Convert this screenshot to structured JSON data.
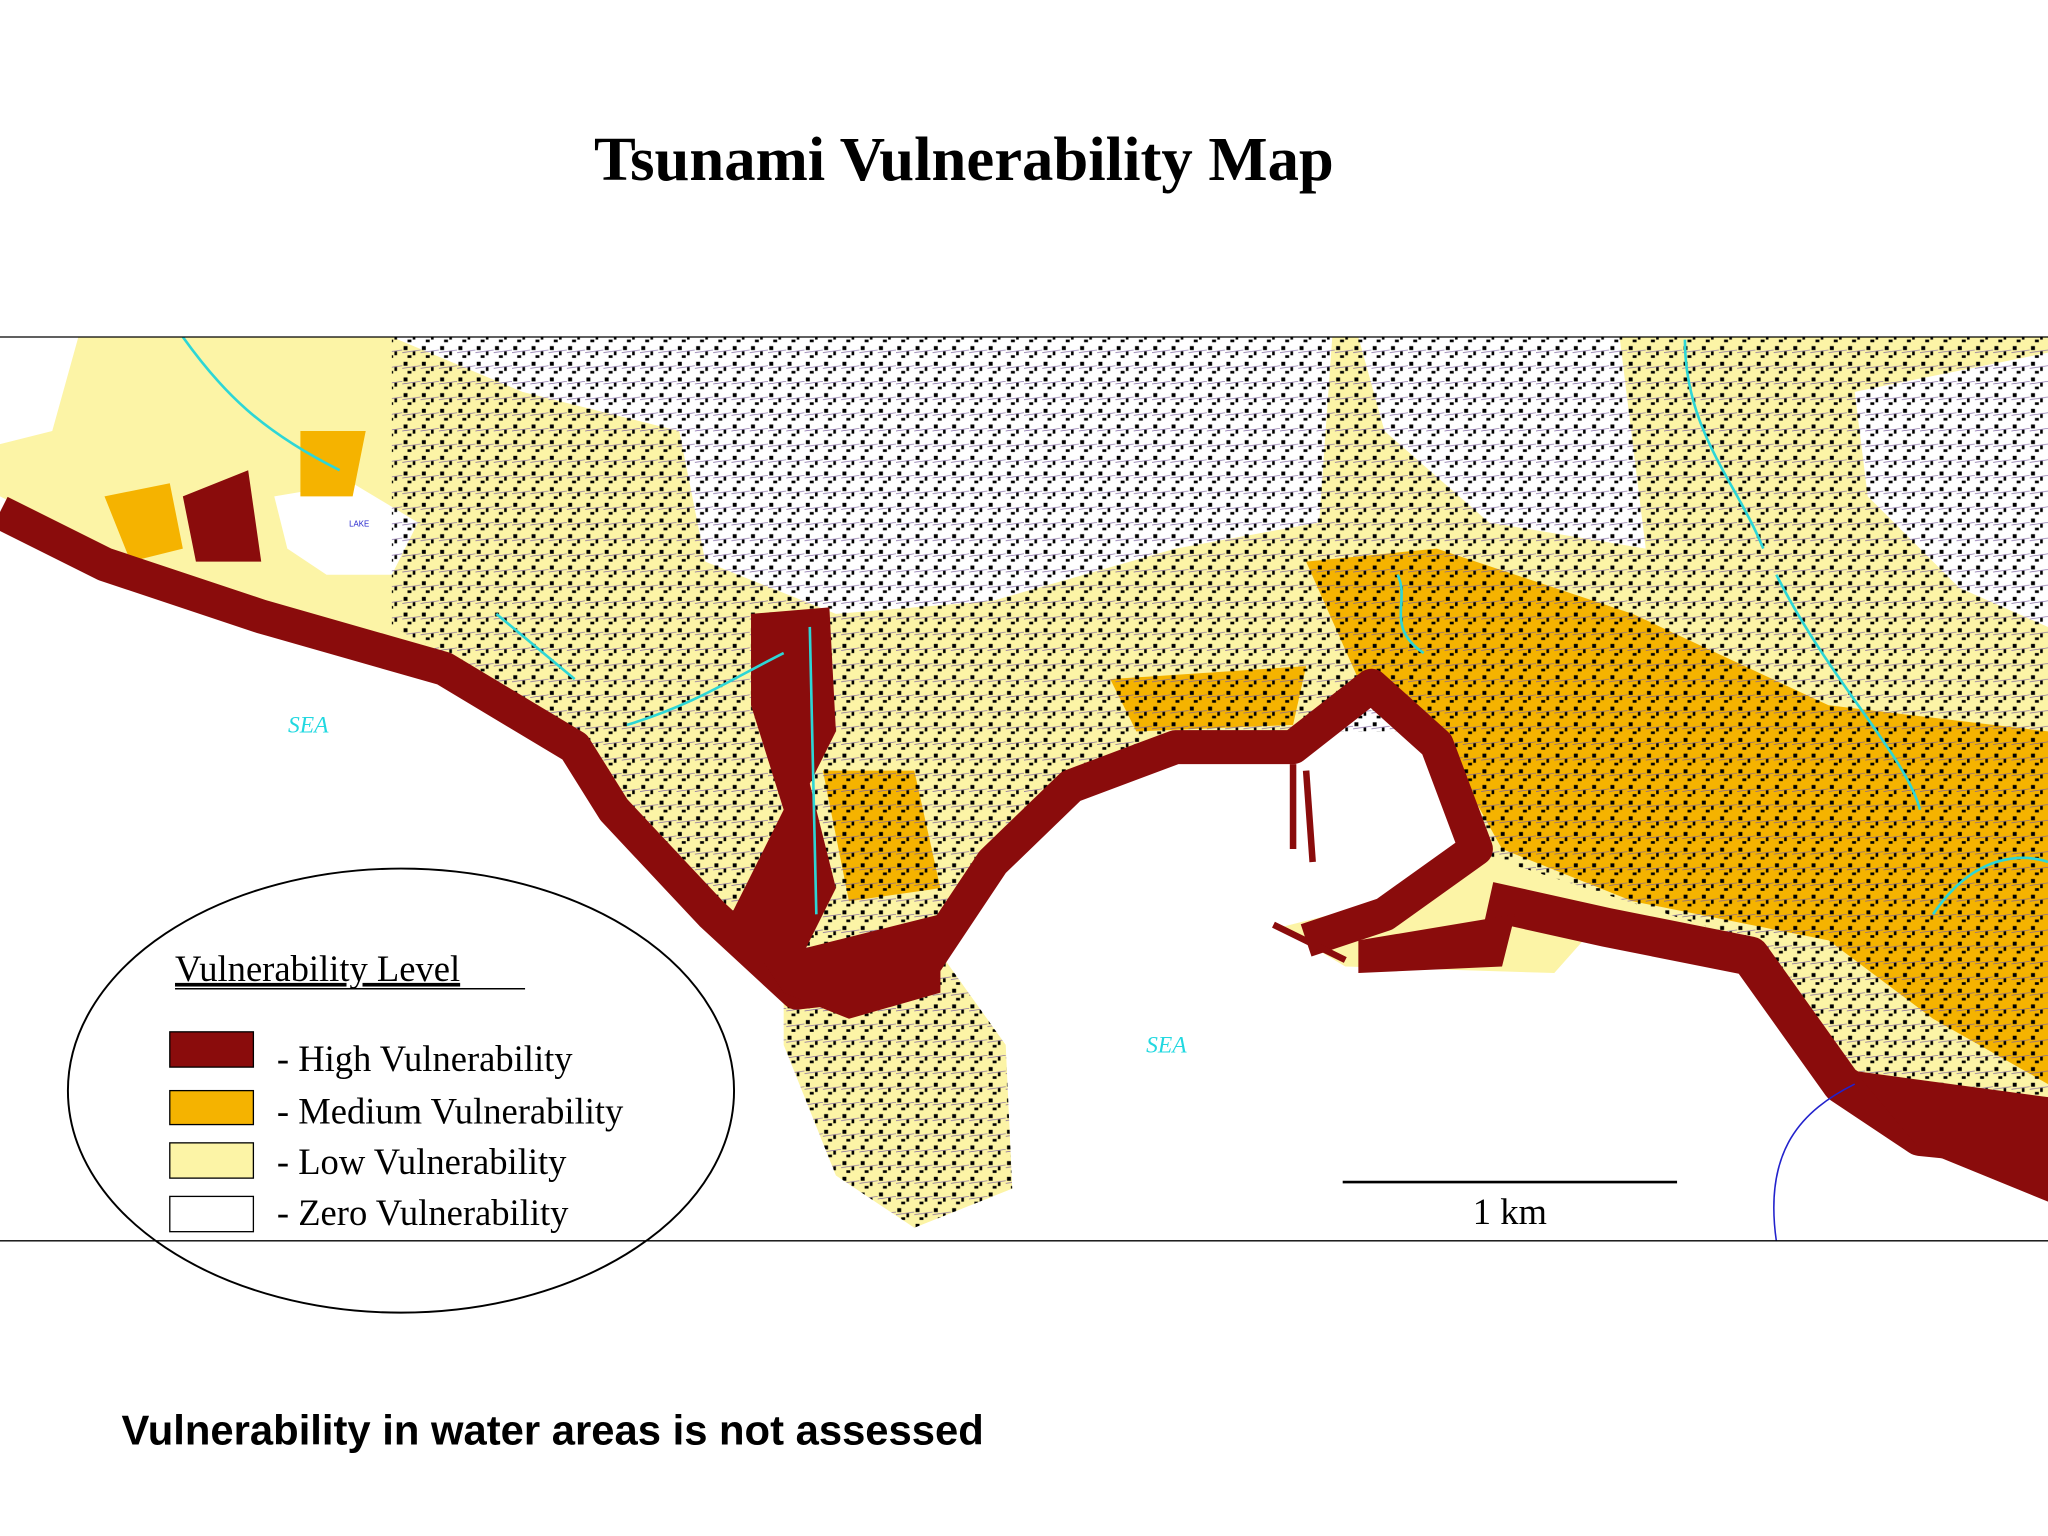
{
  "title": "Tsunami Vulnerability Map",
  "map": {
    "labels": {
      "sea_left": "SEA",
      "sea_right": "SEA",
      "lake": "LAKE",
      "scale": "1 km"
    }
  },
  "legend": {
    "title": "Vulnerability Level",
    "items": [
      "- High Vulnerability",
      "- Medium Vulnerability",
      "- Low Vulnerability",
      "- Zero Vulnerability"
    ]
  },
  "footnote": "Vulnerability in water areas is not assessed"
}
